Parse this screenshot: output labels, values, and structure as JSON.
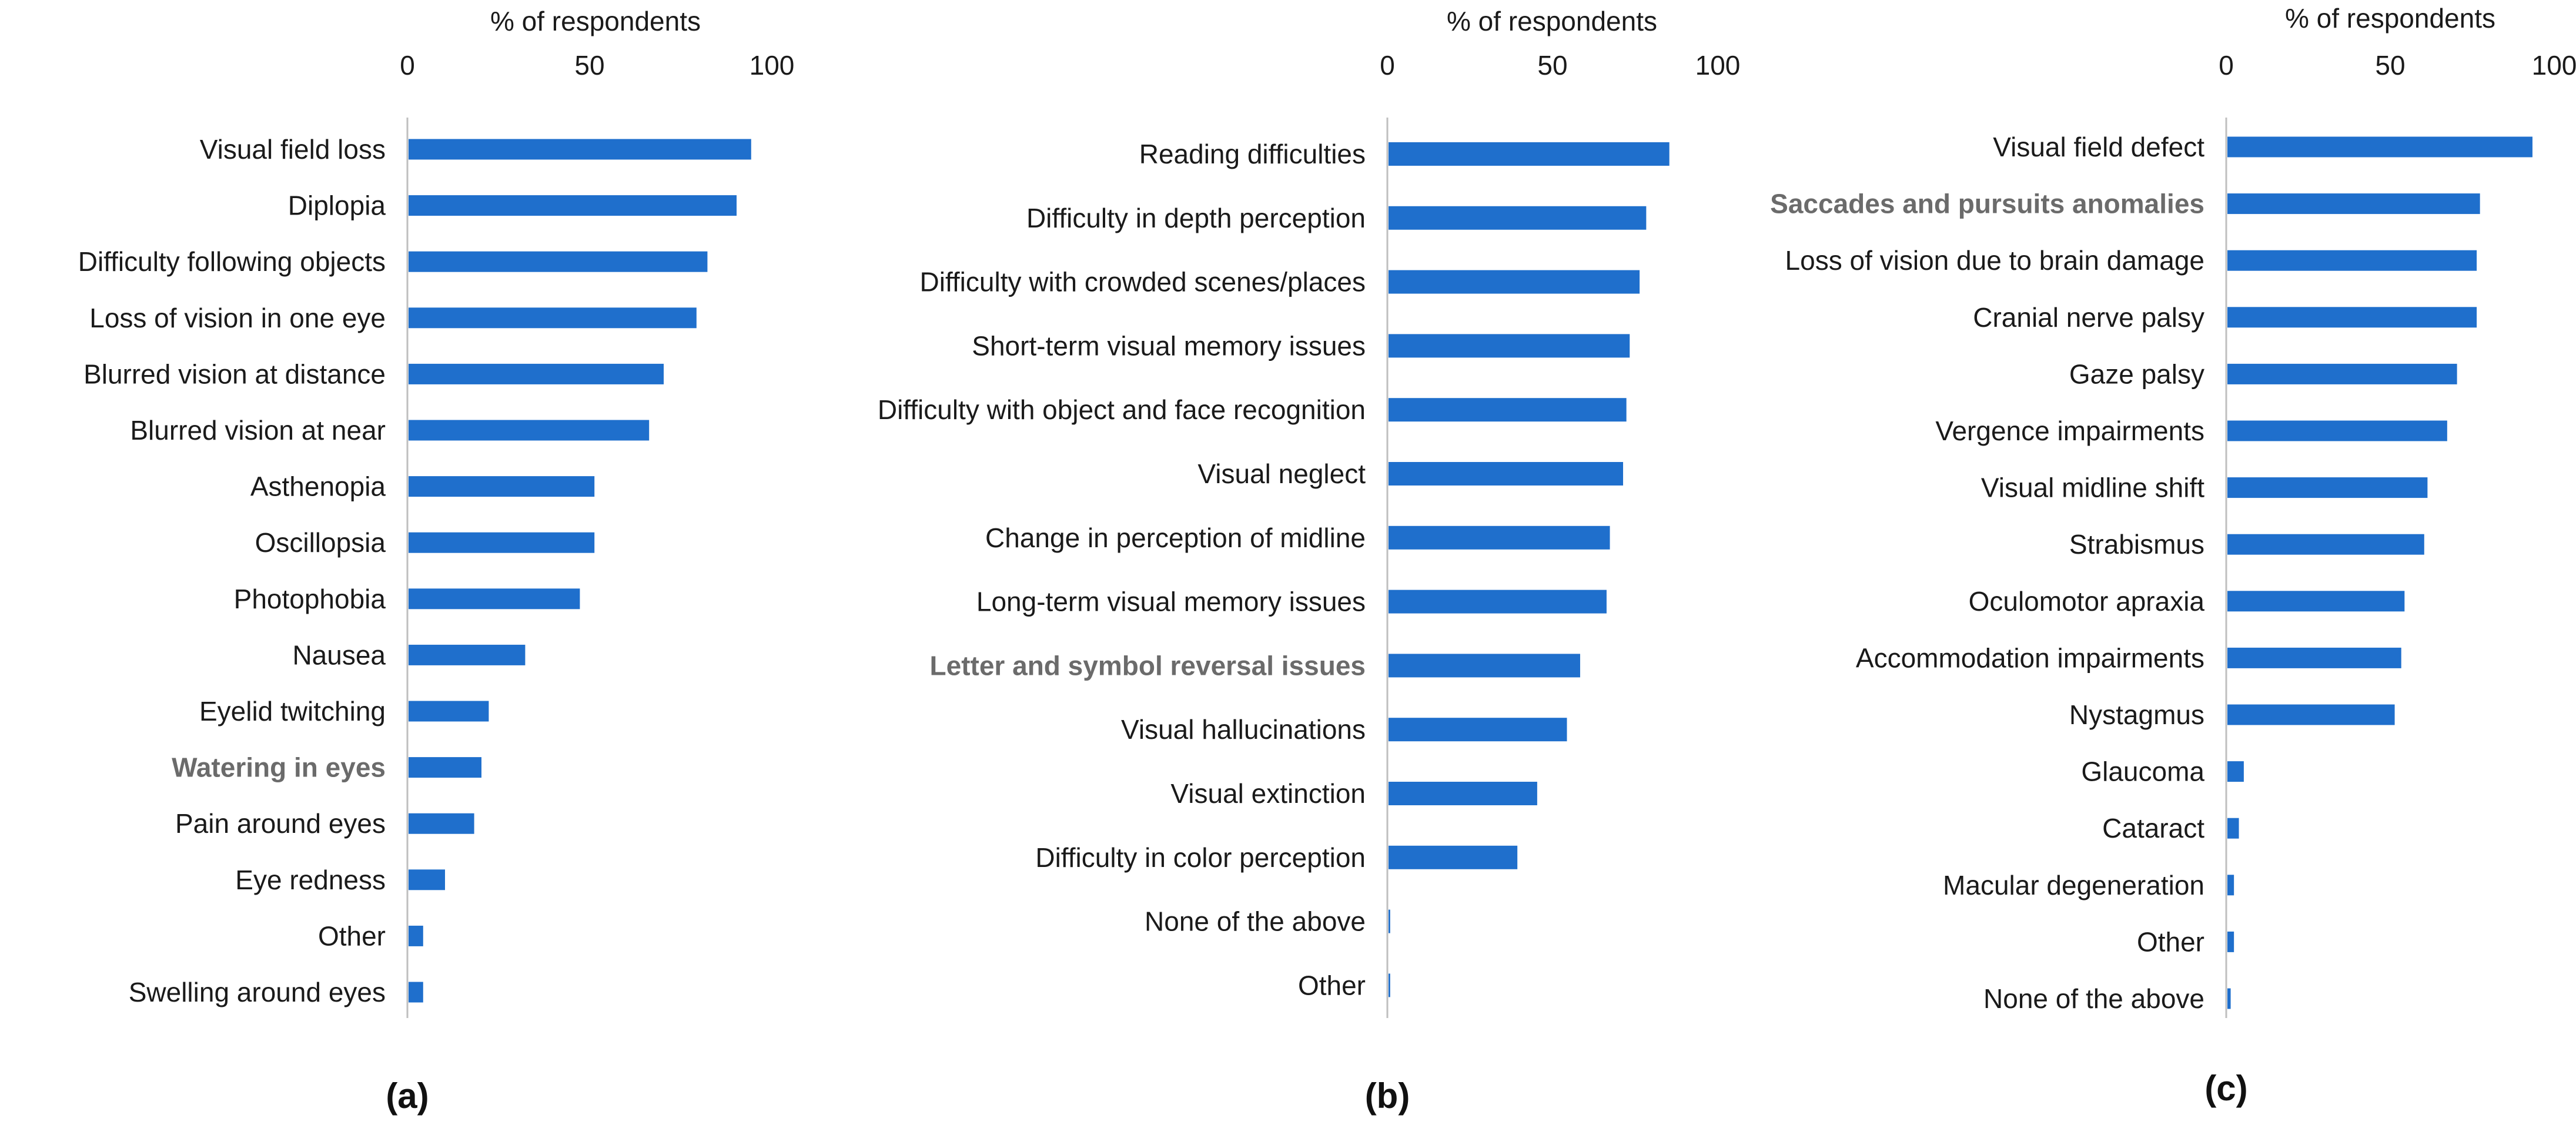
{
  "chart_data": [
    {
      "type": "bar",
      "orientation": "horizontal",
      "panel_label": "(a)",
      "xlabel": "% of respondents",
      "xlim": [
        0,
        100
      ],
      "xticks": [
        "0",
        "50",
        "100"
      ],
      "grid": false,
      "bar_color": "#1f6fcc",
      "categories": [
        "Visual field loss",
        "Diplopia",
        "Difficulty following objects",
        "Loss of vision in one eye",
        "Blurred vision at distance",
        "Blurred vision at near",
        "Asthenopia",
        "Oscillopsia",
        "Photophobia",
        "Nausea",
        "Eyelid twitching",
        "Watering in eyes",
        "Pain around eyes",
        "Eye redness",
        "Other",
        "Swelling around eyes"
      ],
      "emphasized": [
        "Watering in eyes"
      ],
      "values": [
        94,
        90,
        82,
        79,
        70,
        66,
        51,
        51,
        47,
        32,
        22,
        20,
        18,
        10,
        4,
        4
      ]
    },
    {
      "type": "bar",
      "orientation": "horizontal",
      "panel_label": "(b)",
      "xlabel": "% of respondents",
      "xlim": [
        0,
        100
      ],
      "xticks": [
        "0",
        "50",
        "100"
      ],
      "grid": false,
      "bar_color": "#1f6fcc",
      "categories": [
        "Reading difficulties",
        "Difficulty in depth perception",
        "Difficulty with crowded scenes/places",
        "Short-term visual memory issues",
        "Difficulty with object and face recognition",
        "Visual neglect",
        "Change in perception of midline",
        "Long-term visual memory issues",
        "Letter and symbol reversal issues",
        "Visual hallucinations",
        "Visual extinction",
        "Difficulty in color perception",
        "None of the above",
        "Other"
      ],
      "emphasized": [
        "Letter and symbol reversal issues"
      ],
      "values": [
        85,
        78,
        76,
        73,
        72,
        71,
        67,
        66,
        58,
        54,
        45,
        39,
        0.5,
        0.5
      ]
    },
    {
      "type": "bar",
      "orientation": "horizontal",
      "panel_label": "(c)",
      "xlabel": "% of respondents",
      "xlim": [
        0,
        100
      ],
      "xticks": [
        "0",
        "50",
        "100"
      ],
      "grid": false,
      "bar_color": "#1f6fcc",
      "categories": [
        "Visual field defect",
        "Saccades and pursuits anomalies",
        "Loss of vision due to brain damage",
        "Cranial nerve palsy",
        "Gaze palsy",
        "Vergence impairments",
        "Visual midline shift",
        "Strabismus",
        "Oculomotor apraxia",
        "Accommodation impairments",
        "Nystagmus",
        "Glaucoma",
        "Cataract",
        "Macular degeneration",
        "Other",
        "None of the above"
      ],
      "emphasized": [
        "Saccades and pursuits anomalies"
      ],
      "values": [
        93,
        77,
        76,
        76,
        70,
        67,
        61,
        60,
        54,
        53,
        51,
        5,
        3.5,
        2,
        2,
        1
      ]
    }
  ]
}
